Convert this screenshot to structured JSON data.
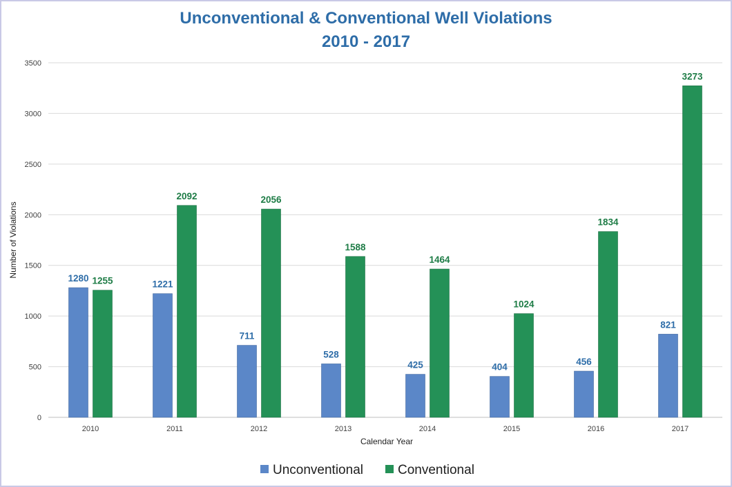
{
  "colors": {
    "unconventional": "#5B87C8",
    "conventional": "#249157",
    "title": "#2E6DA8",
    "grid": "#d9d9d9"
  },
  "chart_data": {
    "type": "bar",
    "title_line1": "Unconventional & Conventional Well Violations",
    "title_line2": "2010 - 2017",
    "xlabel": "Calendar Year",
    "ylabel": "Number of Violations",
    "ylim": [
      0,
      3500
    ],
    "yticks": [
      "0",
      "500",
      "1000",
      "1500",
      "2000",
      "2500",
      "3000",
      "3500"
    ],
    "categories": [
      "2010",
      "2011",
      "2012",
      "2013",
      "2014",
      "2015",
      "2016",
      "2017"
    ],
    "series": [
      {
        "name": "Unconventional",
        "values": [
          1280,
          1221,
          711,
          528,
          425,
          404,
          456,
          821
        ]
      },
      {
        "name": "Conventional",
        "values": [
          1255,
          2092,
          2056,
          1588,
          1464,
          1024,
          1834,
          3273
        ]
      }
    ],
    "grid": true,
    "legend_position": "bottom"
  }
}
